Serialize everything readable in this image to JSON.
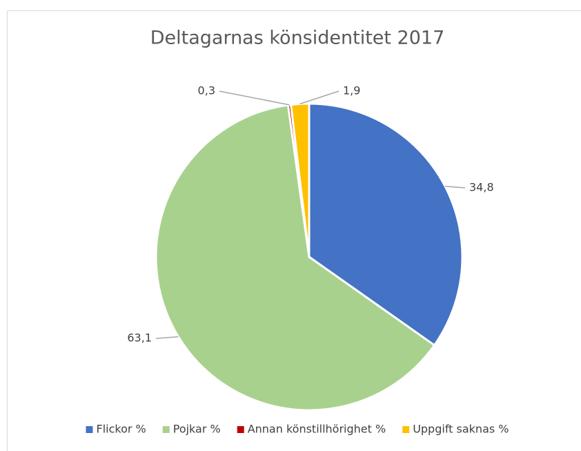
{
  "chart_data": {
    "type": "pie",
    "title": "Deltagarnas könsidentitet 2017",
    "categories": [
      "Flickor %",
      "Pojkar %",
      "Annan könstillhörighet %",
      "Uppgift saknas %"
    ],
    "values": [
      34.8,
      63.1,
      0.3,
      1.9
    ],
    "value_labels": [
      "34,8",
      "63,1",
      "0,3",
      "1,9"
    ],
    "colors": [
      "#4472c4",
      "#a9d18e",
      "#c00000",
      "#ffc000"
    ],
    "legend": "bottom"
  }
}
